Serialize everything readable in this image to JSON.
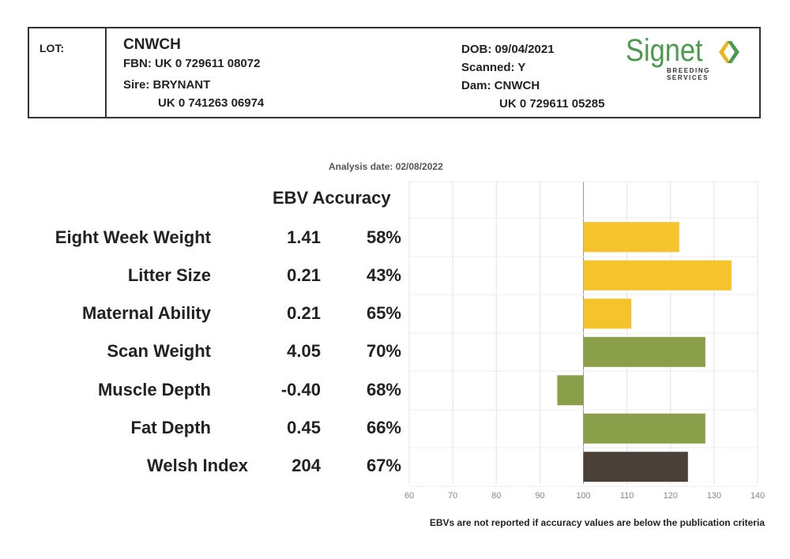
{
  "header": {
    "lot_label": "LOT:",
    "name": "CNWCH",
    "fbn": "FBN: UK 0 729611 08072",
    "sire": "Sire: BRYNANT",
    "sire_id": "UK 0 741263 06974",
    "dob": "DOB: 09/04/2021",
    "scanned": "Scanned: Y",
    "dam": "Dam: CNWCH",
    "dam_id": "UK 0 729611 05285"
  },
  "logo": {
    "word": "Signet",
    "sub": "BREEDING SERVICES",
    "colors": {
      "word": "#4d9a4f",
      "chevron_left": "#e8b521",
      "chevron_right": "#4d9a4f"
    }
  },
  "analysis_date": "Analysis date: 02/08/2022",
  "column_header": "EBV Accuracy",
  "footnote": "EBVs are not reported if accuracy values are below the publication criteria",
  "chart_data": {
    "type": "bar",
    "orientation": "horizontal",
    "categories": [
      "Eight Week Weight",
      "Litter Size",
      "Maternal Ability",
      "Scan Weight",
      "Muscle Depth",
      "Fat Depth",
      "Welsh Index"
    ],
    "ebv": [
      "1.41",
      "0.21",
      "0.21",
      "4.05",
      "-0.40",
      "0.45",
      "204"
    ],
    "accuracy": [
      "58%",
      "43%",
      "65%",
      "70%",
      "68%",
      "66%",
      "67%"
    ],
    "values": [
      122,
      134,
      111,
      128,
      94,
      128,
      124
    ],
    "baseline": 100,
    "xlim": [
      60,
      140
    ],
    "xticks": [
      60,
      70,
      80,
      90,
      100,
      110,
      120,
      130,
      140
    ],
    "grid": true,
    "colors": [
      "#f5c42c",
      "#f5c42c",
      "#f5c42c",
      "#8b9e4a",
      "#8b9e4a",
      "#8b9e4a",
      "#4b4038"
    ]
  }
}
